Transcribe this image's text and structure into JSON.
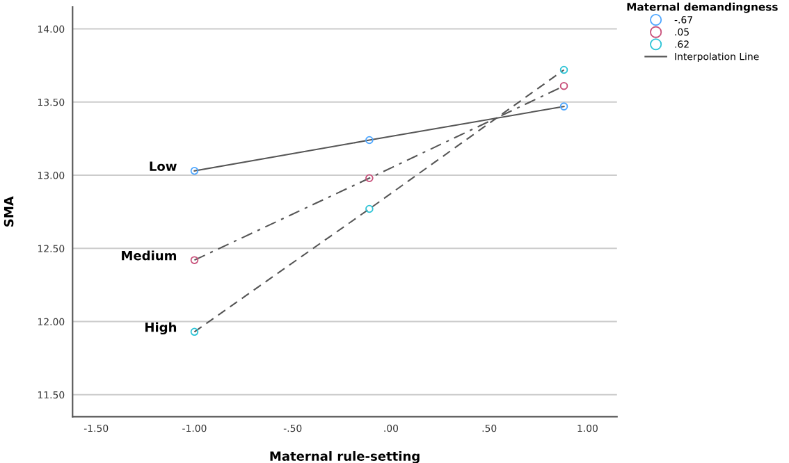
{
  "chart_data": {
    "type": "line",
    "xlabel": "Maternal rule-setting",
    "ylabel": "SMA",
    "legend_title": "Maternal demandingness",
    "x": [
      -1.0,
      -0.11,
      0.88
    ],
    "series": [
      {
        "name": "-.67",
        "color": "#4da6ff",
        "values": [
          13.03,
          13.24,
          13.47
        ],
        "line_style": "solid"
      },
      {
        "name": ".05",
        "color": "#c8507a",
        "values": [
          12.42,
          12.98,
          13.61
        ],
        "line_style": "dashdot"
      },
      {
        "name": ".62",
        "color": "#2ec4d6",
        "values": [
          11.93,
          12.77,
          13.72
        ],
        "line_style": "dashed"
      }
    ],
    "annotations": [
      "Low",
      "Medium",
      "High",
      "Interpolation Line"
    ],
    "xlim": [
      -1.62,
      1.15
    ],
    "xticks": [
      {
        "value": -1.5,
        "label": "-1.50"
      },
      {
        "value": -1.0,
        "label": "-1.00"
      },
      {
        "value": -0.5,
        "label": "-.50"
      },
      {
        "value": 0,
        "label": ".00"
      },
      {
        "value": 0.5,
        "label": ".50"
      },
      {
        "value": 1.0,
        "label": "1.00"
      }
    ],
    "ylim": [
      11.35,
      14.15
    ],
    "yticks": [
      {
        "value": 11.5,
        "label": "11.50"
      },
      {
        "value": 12.0,
        "label": "12.00"
      },
      {
        "value": 12.5,
        "label": "12.50"
      },
      {
        "value": 13.0,
        "label": "13.00"
      },
      {
        "value": 13.5,
        "label": "13.50"
      },
      {
        "value": 14.0,
        "label": "14.00"
      }
    ],
    "grid": "y",
    "legend": "top right",
    "marker": "circle"
  }
}
